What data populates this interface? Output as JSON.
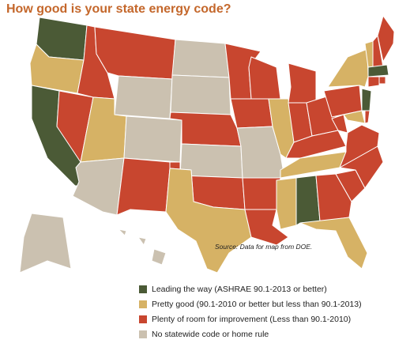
{
  "title": "How good is your state energy code?",
  "source": "Source: Data for map from DOE.",
  "legend": [
    {
      "label": "Leading the way (ASHRAE 90.1-2013 or better)",
      "color": "#4b5a36"
    },
    {
      "label": "Pretty good (90.1-2010 or better but less than 90.1-2013)",
      "color": "#d6b265"
    },
    {
      "label": "Plenty of room for improvement (Less than 90.1-2010)",
      "color": "#c8462f"
    },
    {
      "label": "No statewide code or home rule",
      "color": "#cbc1b0"
    }
  ],
  "map": {
    "regions": [
      0,
      1,
      0,
      2,
      2,
      2,
      3,
      1,
      3,
      3,
      2,
      3,
      3,
      2,
      3,
      2,
      1,
      2,
      2,
      3,
      2,
      2,
      2,
      1,
      2,
      2,
      2,
      2,
      1,
      1,
      0,
      2,
      1,
      2,
      2,
      2,
      2,
      2,
      1,
      0,
      1,
      2,
      1,
      2,
      2,
      0,
      2,
      2,
      3,
      3,
      3,
      3
    ]
  }
}
